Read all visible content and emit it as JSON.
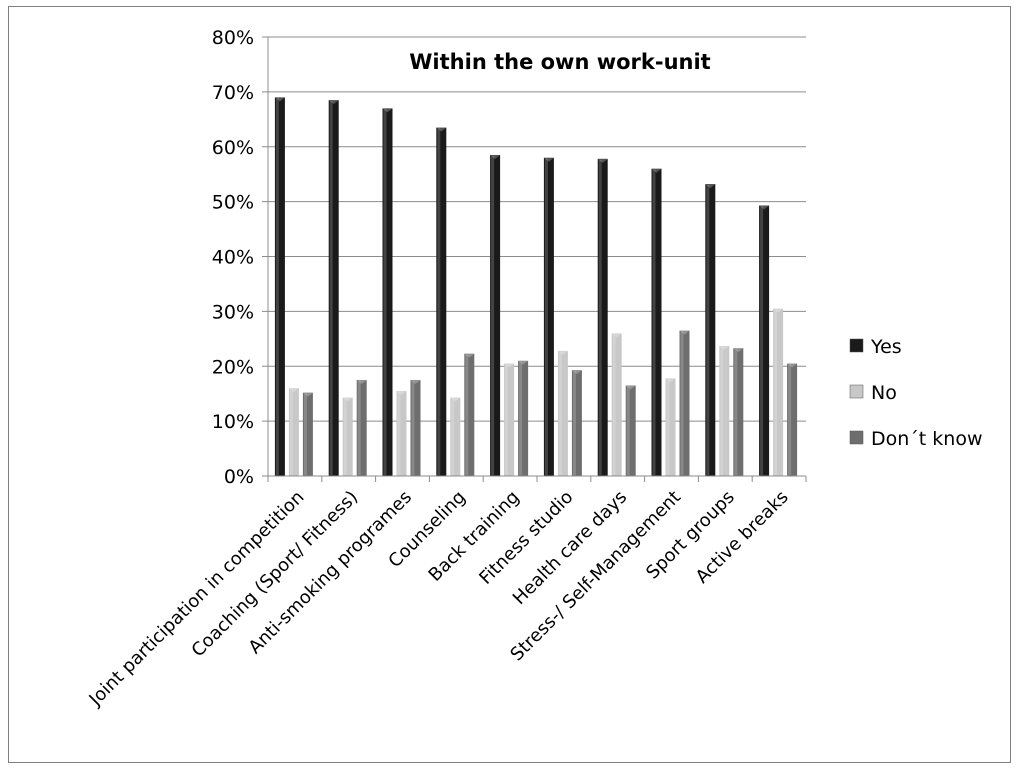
{
  "chart_data": {
    "type": "bar",
    "title": "Within the own work-unit",
    "xlabel": "",
    "ylabel": "",
    "ylim": [
      0,
      0.8
    ],
    "yticks": [
      "0%",
      "10%",
      "20%",
      "30%",
      "40%",
      "50%",
      "60%",
      "70%",
      "80%"
    ],
    "grid": true,
    "legend_position": "right",
    "categories": [
      "Joint participation in competition",
      "Coaching (Sport/ Fitness)",
      "Anti-smoking programes",
      "Counseling",
      "Back training",
      "Fitness studio",
      "Health care days",
      "Stress-/ Self-Management",
      "Sport groups",
      "Active breaks"
    ],
    "series": [
      {
        "name": "Yes",
        "color": "#1a1a1a",
        "values": [
          0.69,
          0.685,
          0.67,
          0.635,
          0.585,
          0.58,
          0.578,
          0.56,
          0.532,
          0.493
        ]
      },
      {
        "name": "No",
        "color": "#c8c8c8",
        "values": [
          0.16,
          0.143,
          0.155,
          0.143,
          0.205,
          0.228,
          0.26,
          0.178,
          0.237,
          0.305
        ]
      },
      {
        "name": "Don´t know",
        "color": "#6e6e6e",
        "values": [
          0.152,
          0.175,
          0.175,
          0.223,
          0.21,
          0.193,
          0.165,
          0.265,
          0.233,
          0.205
        ]
      }
    ]
  }
}
